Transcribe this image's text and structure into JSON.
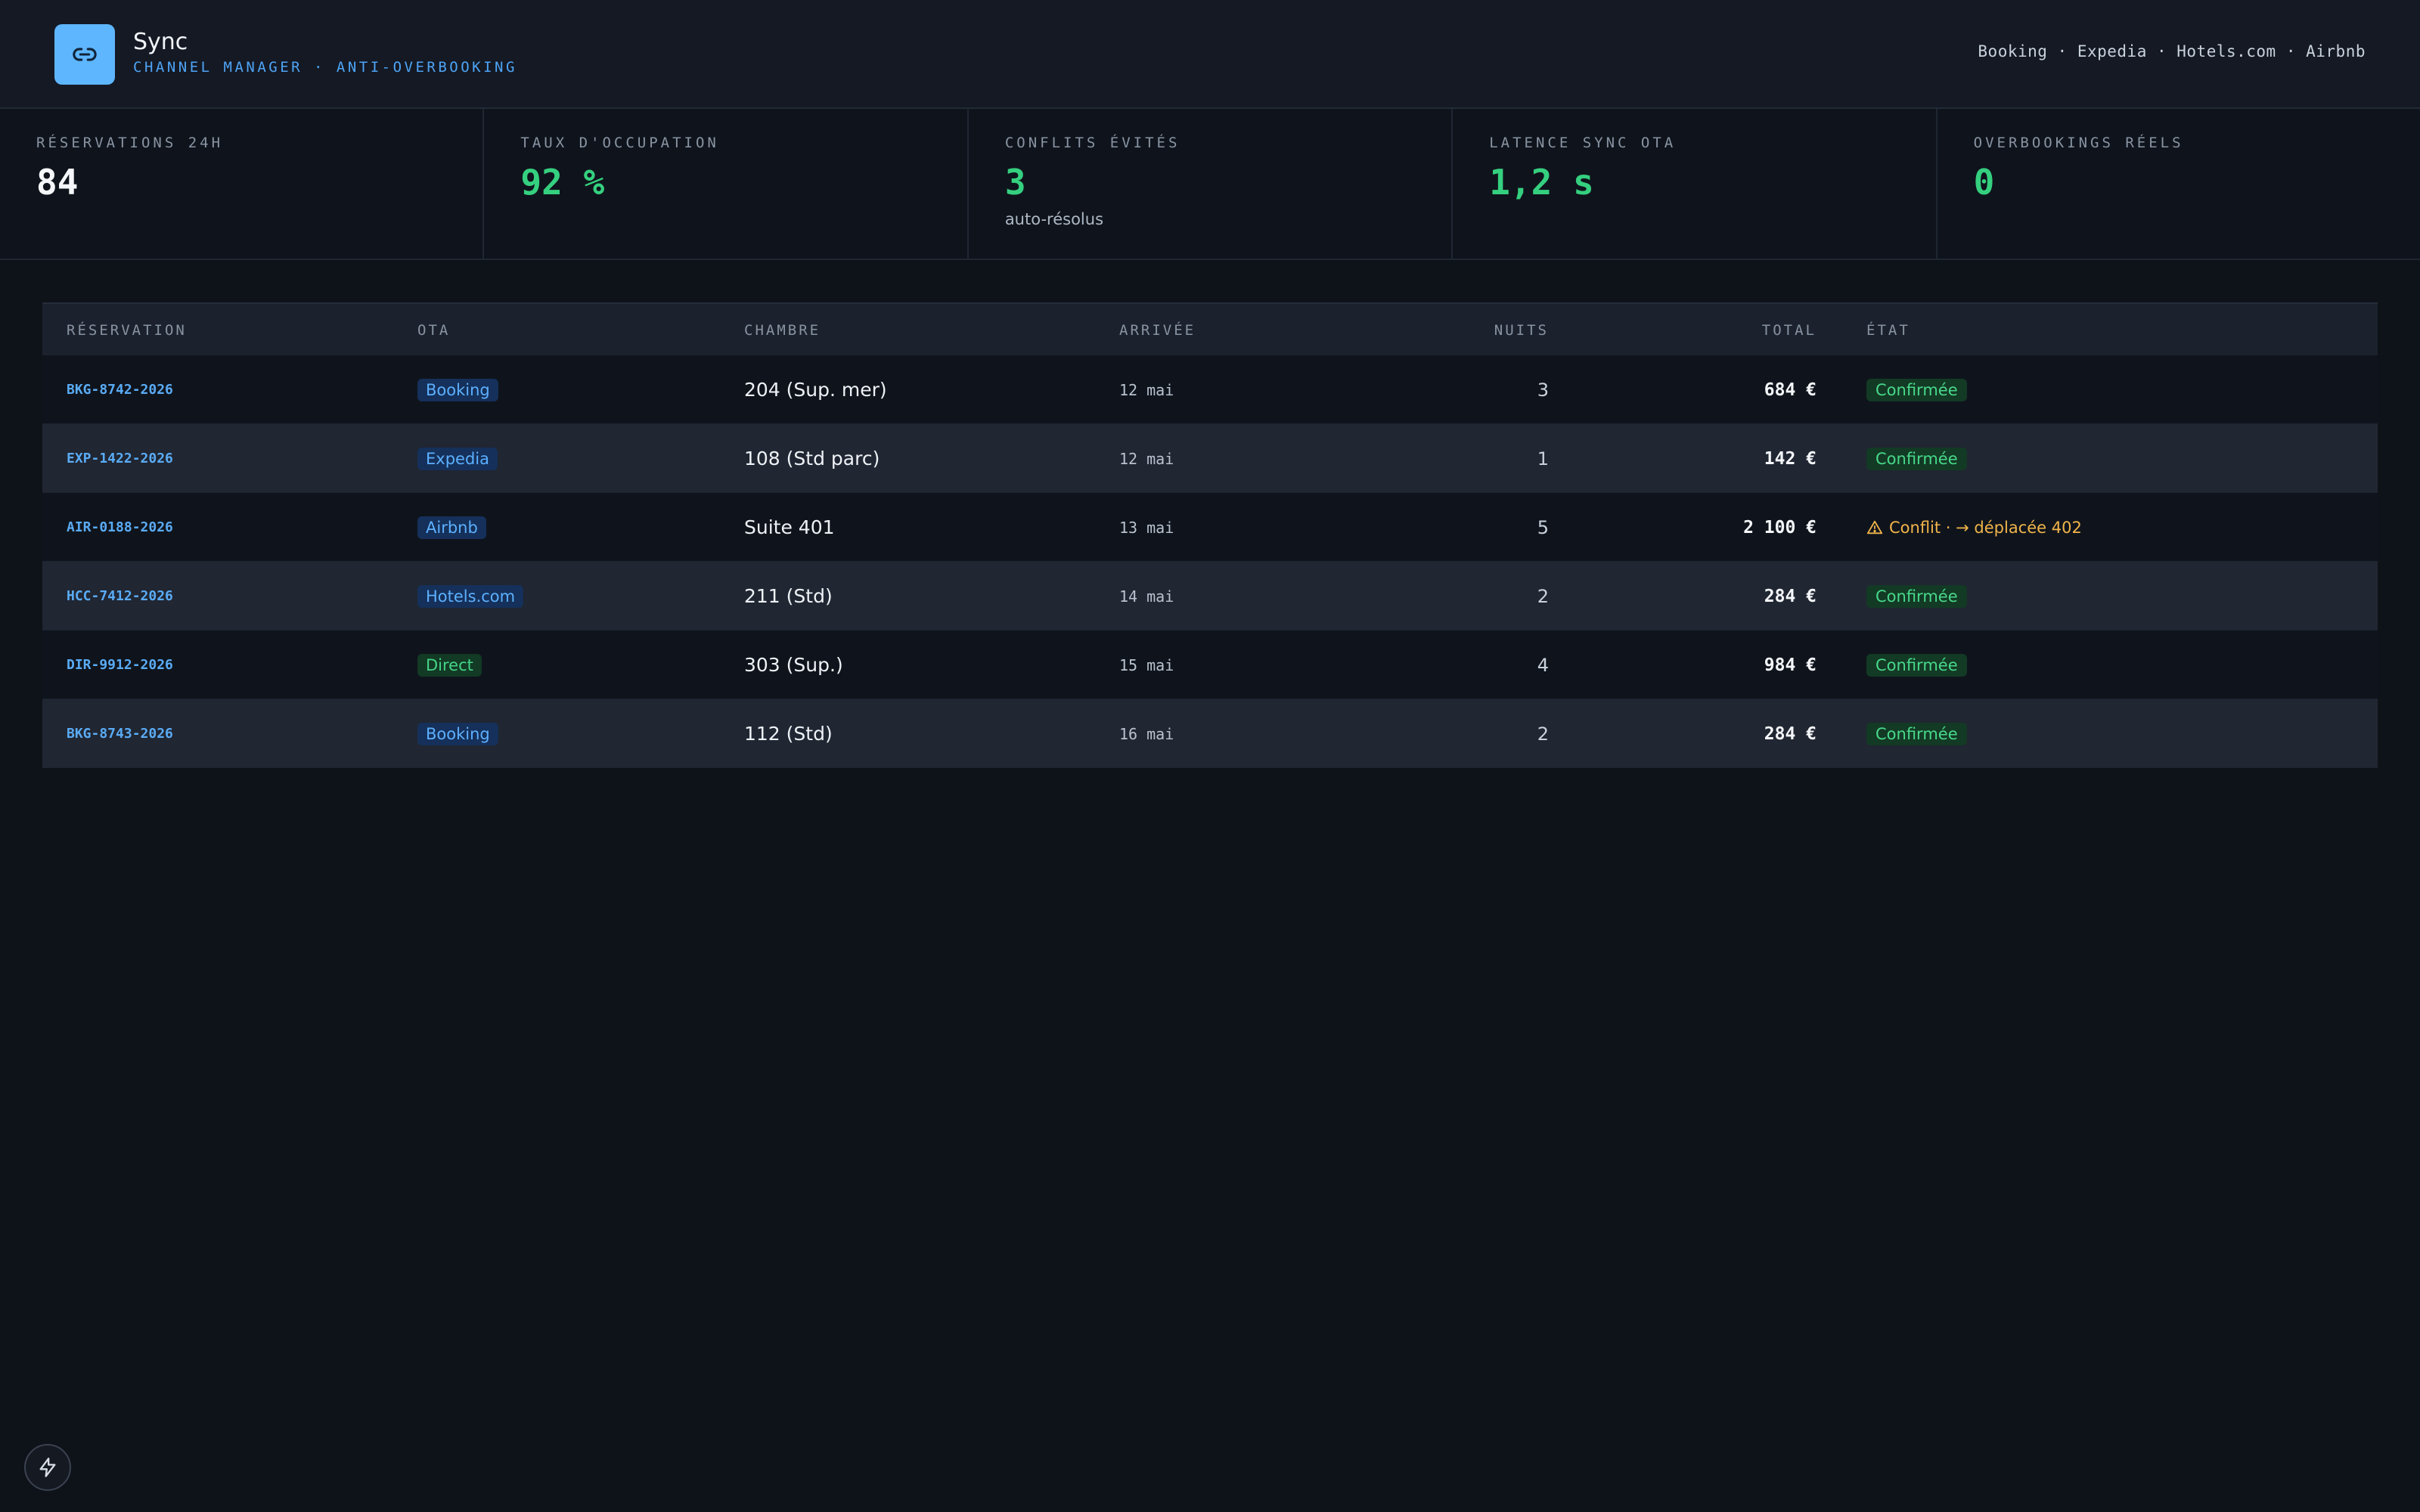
{
  "header": {
    "title": "Sync",
    "subtitle": "CHANNEL MANAGER · ANTI-OVERBOOKING",
    "channels": "Booking · Expedia · Hotels.com · Airbnb",
    "logo_icon": "link-icon"
  },
  "kpis": [
    {
      "label": "RÉSERVATIONS 24H",
      "value": "84",
      "note": ""
    },
    {
      "label": "TAUX D'OCCUPATION",
      "value": "92 %",
      "note": ""
    },
    {
      "label": "CONFLITS ÉVITÉS",
      "value": "3",
      "note": "auto-résolus"
    },
    {
      "label": "LATENCE SYNC OTA",
      "value": "1,2 s",
      "note": ""
    },
    {
      "label": "OVERBOOKINGS RÉELS",
      "value": "0",
      "note": ""
    }
  ],
  "table": {
    "columns": {
      "reservation": "RÉSERVATION",
      "ota": "OTA",
      "room": "CHAMBRE",
      "arrival": "ARRIVÉE",
      "nights": "NUITS",
      "total": "TOTAL",
      "state": "ÉTAT"
    },
    "rows": [
      {
        "id": "BKG-8742-2026",
        "ota": "Booking",
        "room": "204 (Sup. mer)",
        "arrival": "12 mai",
        "nights": "3",
        "total": "684 €",
        "state": "Confirmée"
      },
      {
        "id": "EXP-1422-2026",
        "ota": "Expedia",
        "room": "108 (Std parc)",
        "arrival": "12 mai",
        "nights": "1",
        "total": "142 €",
        "state": "Confirmée"
      },
      {
        "id": "AIR-0188-2026",
        "ota": "Airbnb",
        "room": "Suite 401",
        "arrival": "13 mai",
        "nights": "5",
        "total": "2 100 €",
        "state": "Conflit · → déplacée 402"
      },
      {
        "id": "HCC-7412-2026",
        "ota": "Hotels.com",
        "room": "211 (Std)",
        "arrival": "14 mai",
        "nights": "2",
        "total": "284 €",
        "state": "Confirmée"
      },
      {
        "id": "DIR-9912-2026",
        "ota": "Direct",
        "room": "303 (Sup.)",
        "arrival": "15 mai",
        "nights": "4",
        "total": "984 €",
        "state": "Confirmée"
      },
      {
        "id": "BKG-8743-2026",
        "ota": "Booking",
        "room": "112 (Std)",
        "arrival": "16 mai",
        "nights": "2",
        "total": "284 €",
        "state": "Confirmée"
      }
    ]
  },
  "colors": {
    "accent": "#5eb6ff",
    "positive": "#35d07f",
    "warning": "#f0b44a"
  },
  "footer": {
    "bolt_icon": "lightning-icon"
  }
}
